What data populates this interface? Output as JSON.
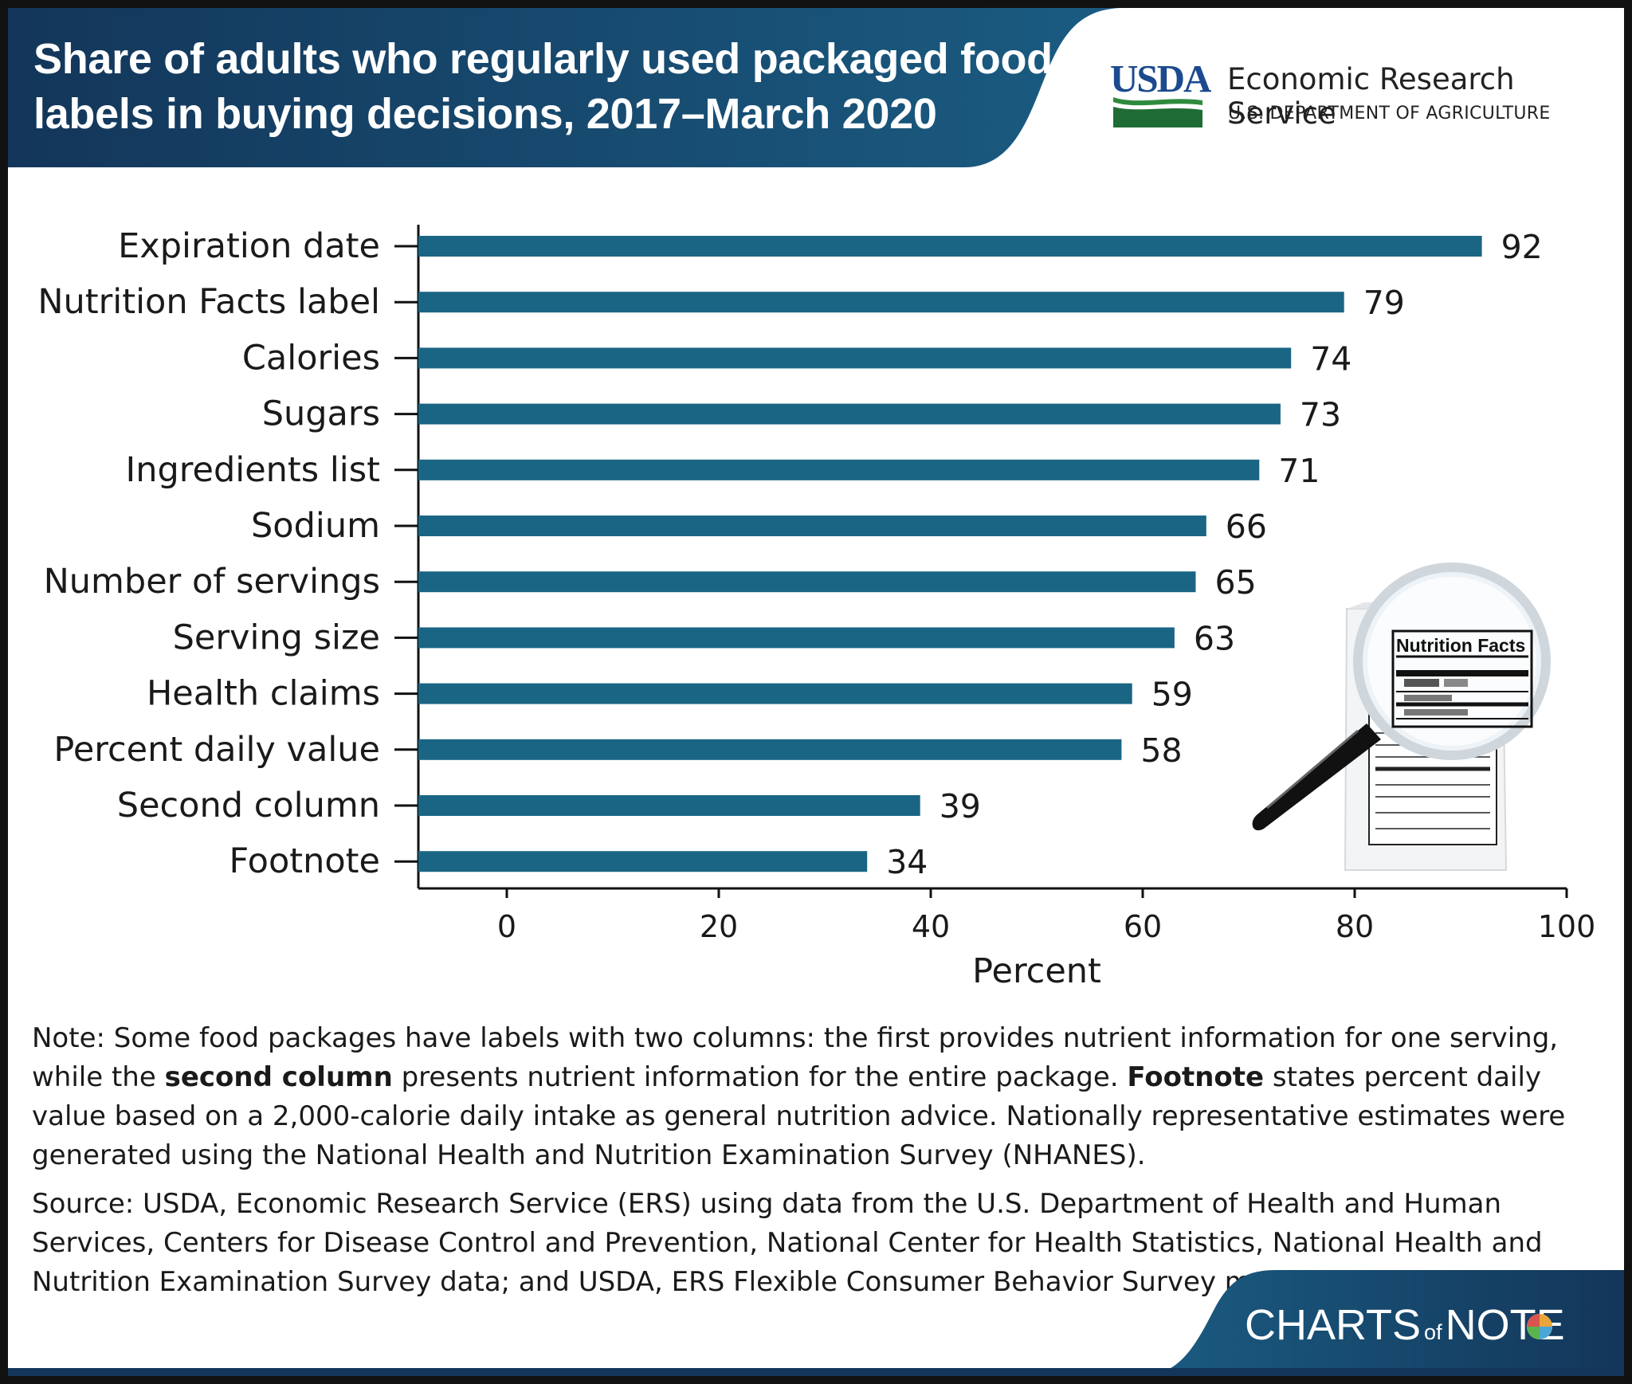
{
  "header": {
    "title": "Share of adults who regularly used packaged food labels in buying decisions, 2017–March 2020",
    "logo_usda": "USDA",
    "agency_name": "Economic Research Service",
    "department": "U.S. DEPARTMENT OF AGRICULTURE"
  },
  "chart_data": {
    "type": "bar",
    "orientation": "horizontal",
    "categories": [
      "Expiration date",
      "Nutrition Facts label",
      "Calories",
      "Sugars",
      "Ingredients list",
      "Sodium",
      "Number of servings",
      "Serving size",
      "Health claims",
      "Percent daily value",
      "Second column",
      "Footnote"
    ],
    "values": [
      92,
      79,
      74,
      73,
      71,
      66,
      65,
      63,
      59,
      58,
      39,
      34
    ],
    "data_labels": [
      "92",
      "79",
      "74",
      "73",
      "71",
      "66",
      "65",
      "63",
      "59",
      "58",
      "39",
      "34"
    ],
    "xlabel": "Percent",
    "ylabel": "",
    "xlim": [
      0,
      100
    ],
    "x_ticks": [
      "0",
      "20",
      "40",
      "60",
      "80",
      "100"
    ],
    "grid": false,
    "bar_color": "#1a6584"
  },
  "illustration": {
    "label_title": "Nutrition Facts"
  },
  "notes": {
    "note_1": "Note: Some food packages have labels with two columns: the first provides nutrient information for one serving, while the ",
    "note_bold_1": "second column",
    "note_2": " presents nutrient information for the entire package. ",
    "note_bold_2": "Footnote",
    "note_3": " states percent daily value based on a 2,000-calorie daily intake as general nutrition advice. Nationally representative estimates were generated using the National Health and Nutrition Examination Survey (NHANES).",
    "source": "Source: USDA, Economic Research Service (ERS) using data from the U.S. Department of Health and Human Services, Centers for Disease Control and Prevention, National Center for Health Statistics, National Health and Nutrition Examination Survey data; and USDA, ERS Flexible Consumer Behavior Survey module data."
  },
  "footer": {
    "brand_part1": "CHARTS",
    "brand_of": "of",
    "brand_part2": "NOTE"
  },
  "colors": {
    "header_dark": "#13365a",
    "header_mid": "#1a5a80",
    "bar": "#1a6584",
    "usda_blue": "#1b4a8e",
    "usda_green": "#2e8b3e"
  }
}
